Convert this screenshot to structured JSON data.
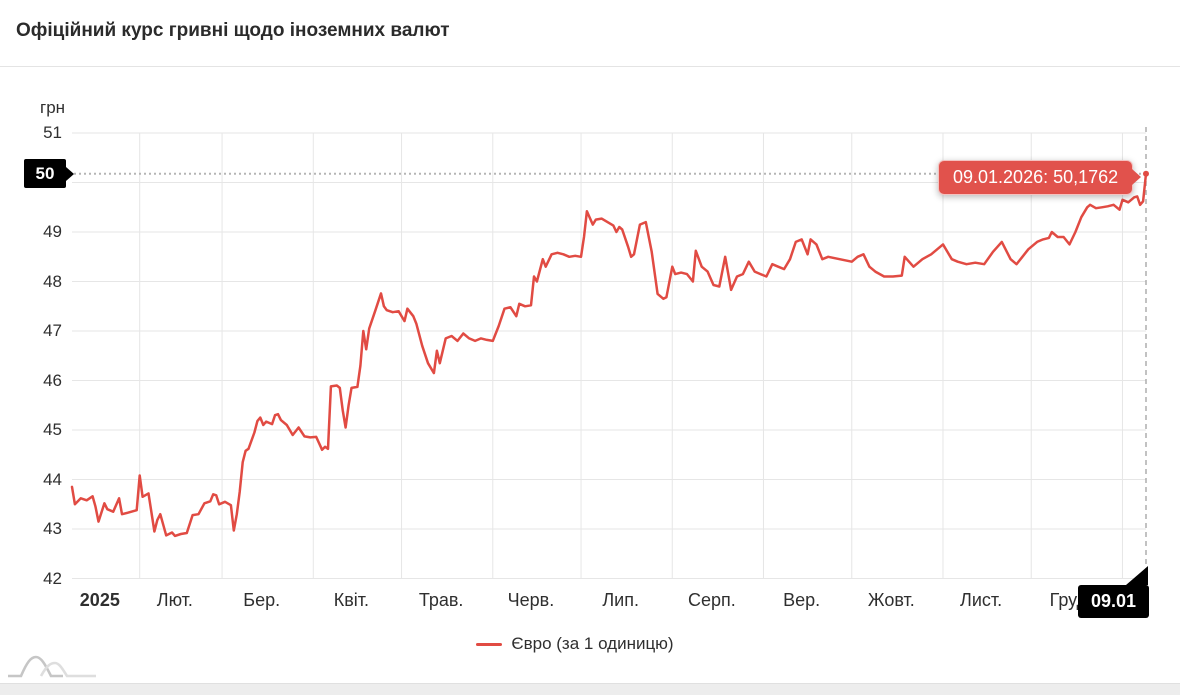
{
  "header": {
    "title": "Офіційний курс гривні щодо іноземних валют"
  },
  "colors": {
    "line": "#e14b43",
    "tooltip_bg": "#e1524c",
    "grid": "#e6e6e6",
    "crosshair_dotted": "#b5b5b5",
    "crosshair_dashed": "#a8a8a8",
    "badge_bg": "#000000",
    "badge_text": "#ffffff",
    "text": "#2f2f2f",
    "band": "#ededed"
  },
  "axis": {
    "y_title": "грн",
    "y_ticks": [
      51,
      50,
      49,
      48,
      47,
      46,
      45,
      44,
      43,
      42
    ],
    "x_labels": [
      "2025",
      "Лют.",
      "Бер.",
      "Квіт.",
      "Трав.",
      "Черв.",
      "Лип.",
      "Серп.",
      "Вер.",
      "Жовт.",
      "Лист.",
      "Груд."
    ]
  },
  "crosshair": {
    "y_badge": "50",
    "x_badge": "09.01"
  },
  "tooltip": {
    "text": "09.01.2026: 50,1762"
  },
  "legend": {
    "label": "Євро (за 1 одиницю)"
  },
  "chart_data": {
    "type": "line",
    "title": "Офіційний курс гривні щодо іноземних валют",
    "xlabel": "",
    "ylabel": "грн",
    "ylim": [
      42,
      51
    ],
    "x_range": [
      "2025-01-09",
      "2026-01-09"
    ],
    "grid": true,
    "legend_position": "bottom",
    "last_point": {
      "date_label": "09.01.2026",
      "value": 50.1762
    },
    "series": [
      {
        "name": "Євро (за 1 одиницю)",
        "points": [
          [
            "2025-01-09",
            43.85
          ],
          [
            "2025-01-10",
            43.5
          ],
          [
            "2025-01-12",
            43.62
          ],
          [
            "2025-01-14",
            43.58
          ],
          [
            "2025-01-16",
            43.66
          ],
          [
            "2025-01-17",
            43.45
          ],
          [
            "2025-01-18",
            43.15
          ],
          [
            "2025-01-20",
            43.52
          ],
          [
            "2025-01-21",
            43.4
          ],
          [
            "2025-01-23",
            43.35
          ],
          [
            "2025-01-25",
            43.62
          ],
          [
            "2025-01-26",
            43.3
          ],
          [
            "2025-01-28",
            43.33
          ],
          [
            "2025-01-31",
            43.38
          ],
          [
            "2025-02-01",
            44.08
          ],
          [
            "2025-02-02",
            43.65
          ],
          [
            "2025-02-04",
            43.72
          ],
          [
            "2025-02-06",
            42.95
          ],
          [
            "2025-02-07",
            43.18
          ],
          [
            "2025-02-08",
            43.3
          ],
          [
            "2025-02-10",
            42.87
          ],
          [
            "2025-02-12",
            42.93
          ],
          [
            "2025-02-13",
            42.86
          ],
          [
            "2025-02-15",
            42.9
          ],
          [
            "2025-02-17",
            42.92
          ],
          [
            "2025-02-19",
            43.28
          ],
          [
            "2025-02-21",
            43.3
          ],
          [
            "2025-02-23",
            43.52
          ],
          [
            "2025-02-25",
            43.56
          ],
          [
            "2025-02-26",
            43.7
          ],
          [
            "2025-02-27",
            43.68
          ],
          [
            "2025-02-28",
            43.5
          ],
          [
            "2025-03-02",
            43.55
          ],
          [
            "2025-03-04",
            43.48
          ],
          [
            "2025-03-05",
            42.97
          ],
          [
            "2025-03-06",
            43.3
          ],
          [
            "2025-03-07",
            43.75
          ],
          [
            "2025-03-08",
            44.35
          ],
          [
            "2025-03-09",
            44.58
          ],
          [
            "2025-03-10",
            44.62
          ],
          [
            "2025-03-12",
            44.95
          ],
          [
            "2025-03-13",
            45.18
          ],
          [
            "2025-03-14",
            45.25
          ],
          [
            "2025-03-15",
            45.1
          ],
          [
            "2025-03-16",
            45.17
          ],
          [
            "2025-03-18",
            45.12
          ],
          [
            "2025-03-19",
            45.3
          ],
          [
            "2025-03-20",
            45.32
          ],
          [
            "2025-03-21",
            45.2
          ],
          [
            "2025-03-23",
            45.1
          ],
          [
            "2025-03-25",
            44.9
          ],
          [
            "2025-03-27",
            45.05
          ],
          [
            "2025-03-29",
            44.87
          ],
          [
            "2025-03-31",
            44.85
          ],
          [
            "2025-04-02",
            44.86
          ],
          [
            "2025-04-04",
            44.6
          ],
          [
            "2025-04-05",
            44.66
          ],
          [
            "2025-04-06",
            44.62
          ],
          [
            "2025-04-07",
            45.88
          ],
          [
            "2025-04-09",
            45.9
          ],
          [
            "2025-04-10",
            45.85
          ],
          [
            "2025-04-11",
            45.4
          ],
          [
            "2025-04-12",
            45.05
          ],
          [
            "2025-04-13",
            45.5
          ],
          [
            "2025-04-14",
            45.85
          ],
          [
            "2025-04-16",
            45.87
          ],
          [
            "2025-04-17",
            46.3
          ],
          [
            "2025-04-18",
            47.0
          ],
          [
            "2025-04-19",
            46.63
          ],
          [
            "2025-04-20",
            47.05
          ],
          [
            "2025-04-22",
            47.4
          ],
          [
            "2025-04-24",
            47.76
          ],
          [
            "2025-04-25",
            47.5
          ],
          [
            "2025-04-26",
            47.42
          ],
          [
            "2025-04-28",
            47.38
          ],
          [
            "2025-04-30",
            47.4
          ],
          [
            "2025-05-02",
            47.2
          ],
          [
            "2025-05-03",
            47.45
          ],
          [
            "2025-05-05",
            47.3
          ],
          [
            "2025-05-06",
            47.15
          ],
          [
            "2025-05-08",
            46.7
          ],
          [
            "2025-05-10",
            46.35
          ],
          [
            "2025-05-12",
            46.15
          ],
          [
            "2025-05-13",
            46.6
          ],
          [
            "2025-05-14",
            46.35
          ],
          [
            "2025-05-16",
            46.85
          ],
          [
            "2025-05-18",
            46.9
          ],
          [
            "2025-05-20",
            46.8
          ],
          [
            "2025-05-22",
            46.95
          ],
          [
            "2025-05-24",
            46.85
          ],
          [
            "2025-05-26",
            46.8
          ],
          [
            "2025-05-28",
            46.85
          ],
          [
            "2025-05-30",
            46.82
          ],
          [
            "2025-06-01",
            46.8
          ],
          [
            "2025-06-03",
            47.1
          ],
          [
            "2025-06-05",
            47.45
          ],
          [
            "2025-06-07",
            47.48
          ],
          [
            "2025-06-09",
            47.3
          ],
          [
            "2025-06-10",
            47.55
          ],
          [
            "2025-06-12",
            47.5
          ],
          [
            "2025-06-14",
            47.52
          ],
          [
            "2025-06-15",
            48.1
          ],
          [
            "2025-06-16",
            48.0
          ],
          [
            "2025-06-18",
            48.45
          ],
          [
            "2025-06-19",
            48.3
          ],
          [
            "2025-06-21",
            48.55
          ],
          [
            "2025-06-23",
            48.58
          ],
          [
            "2025-06-25",
            48.55
          ],
          [
            "2025-06-27",
            48.5
          ],
          [
            "2025-06-29",
            48.52
          ],
          [
            "2025-07-01",
            48.5
          ],
          [
            "2025-07-02",
            48.9
          ],
          [
            "2025-07-03",
            49.42
          ],
          [
            "2025-07-05",
            49.15
          ],
          [
            "2025-07-06",
            49.25
          ],
          [
            "2025-07-08",
            49.27
          ],
          [
            "2025-07-10",
            49.2
          ],
          [
            "2025-07-12",
            49.13
          ],
          [
            "2025-07-13",
            49.0
          ],
          [
            "2025-07-14",
            49.1
          ],
          [
            "2025-07-15",
            49.05
          ],
          [
            "2025-07-17",
            48.7
          ],
          [
            "2025-07-18",
            48.5
          ],
          [
            "2025-07-19",
            48.55
          ],
          [
            "2025-07-21",
            49.15
          ],
          [
            "2025-07-23",
            49.2
          ],
          [
            "2025-07-25",
            48.6
          ],
          [
            "2025-07-27",
            47.75
          ],
          [
            "2025-07-29",
            47.65
          ],
          [
            "2025-07-30",
            47.68
          ],
          [
            "2025-08-01",
            48.3
          ],
          [
            "2025-08-02",
            48.15
          ],
          [
            "2025-08-04",
            48.18
          ],
          [
            "2025-08-06",
            48.15
          ],
          [
            "2025-08-08",
            48.0
          ],
          [
            "2025-08-09",
            48.62
          ],
          [
            "2025-08-11",
            48.3
          ],
          [
            "2025-08-13",
            48.2
          ],
          [
            "2025-08-15",
            47.93
          ],
          [
            "2025-08-17",
            47.9
          ],
          [
            "2025-08-19",
            48.5
          ],
          [
            "2025-08-21",
            47.83
          ],
          [
            "2025-08-23",
            48.1
          ],
          [
            "2025-08-25",
            48.15
          ],
          [
            "2025-08-27",
            48.4
          ],
          [
            "2025-08-29",
            48.2
          ],
          [
            "2025-08-31",
            48.15
          ],
          [
            "2025-09-02",
            48.1
          ],
          [
            "2025-09-04",
            48.35
          ],
          [
            "2025-09-06",
            48.3
          ],
          [
            "2025-09-08",
            48.25
          ],
          [
            "2025-09-10",
            48.45
          ],
          [
            "2025-09-12",
            48.8
          ],
          [
            "2025-09-14",
            48.85
          ],
          [
            "2025-09-16",
            48.55
          ],
          [
            "2025-09-17",
            48.85
          ],
          [
            "2025-09-19",
            48.75
          ],
          [
            "2025-09-21",
            48.45
          ],
          [
            "2025-09-23",
            48.5
          ],
          [
            "2025-10-01",
            48.4
          ],
          [
            "2025-10-03",
            48.5
          ],
          [
            "2025-10-05",
            48.55
          ],
          [
            "2025-10-07",
            48.3
          ],
          [
            "2025-10-09",
            48.2
          ],
          [
            "2025-10-12",
            48.1
          ],
          [
            "2025-10-15",
            48.1
          ],
          [
            "2025-10-18",
            48.12
          ],
          [
            "2025-10-19",
            48.5
          ],
          [
            "2025-10-22",
            48.3
          ],
          [
            "2025-10-25",
            48.45
          ],
          [
            "2025-10-28",
            48.55
          ],
          [
            "2025-11-01",
            48.75
          ],
          [
            "2025-11-04",
            48.45
          ],
          [
            "2025-11-06",
            48.4
          ],
          [
            "2025-11-09",
            48.35
          ],
          [
            "2025-11-12",
            48.38
          ],
          [
            "2025-11-15",
            48.35
          ],
          [
            "2025-11-18",
            48.6
          ],
          [
            "2025-11-21",
            48.8
          ],
          [
            "2025-11-24",
            48.45
          ],
          [
            "2025-11-26",
            48.35
          ],
          [
            "2025-11-28",
            48.5
          ],
          [
            "2025-11-30",
            48.65
          ],
          [
            "2025-12-03",
            48.8
          ],
          [
            "2025-12-05",
            48.85
          ],
          [
            "2025-12-07",
            48.88
          ],
          [
            "2025-12-08",
            49.0
          ],
          [
            "2025-12-10",
            48.9
          ],
          [
            "2025-12-12",
            48.9
          ],
          [
            "2025-12-14",
            48.75
          ],
          [
            "2025-12-16",
            49.0
          ],
          [
            "2025-12-18",
            49.3
          ],
          [
            "2025-12-20",
            49.5
          ],
          [
            "2025-12-21",
            49.55
          ],
          [
            "2025-12-23",
            49.48
          ],
          [
            "2025-12-25",
            49.5
          ],
          [
            "2025-12-27",
            49.52
          ],
          [
            "2025-12-29",
            49.55
          ],
          [
            "2025-12-31",
            49.45
          ],
          [
            "2026-01-01",
            49.65
          ],
          [
            "2026-01-03",
            49.6
          ],
          [
            "2026-01-05",
            49.7
          ],
          [
            "2026-01-06",
            49.72
          ],
          [
            "2026-01-07",
            49.55
          ],
          [
            "2026-01-08",
            49.62
          ],
          [
            "2026-01-09",
            50.1762
          ]
        ]
      }
    ]
  }
}
